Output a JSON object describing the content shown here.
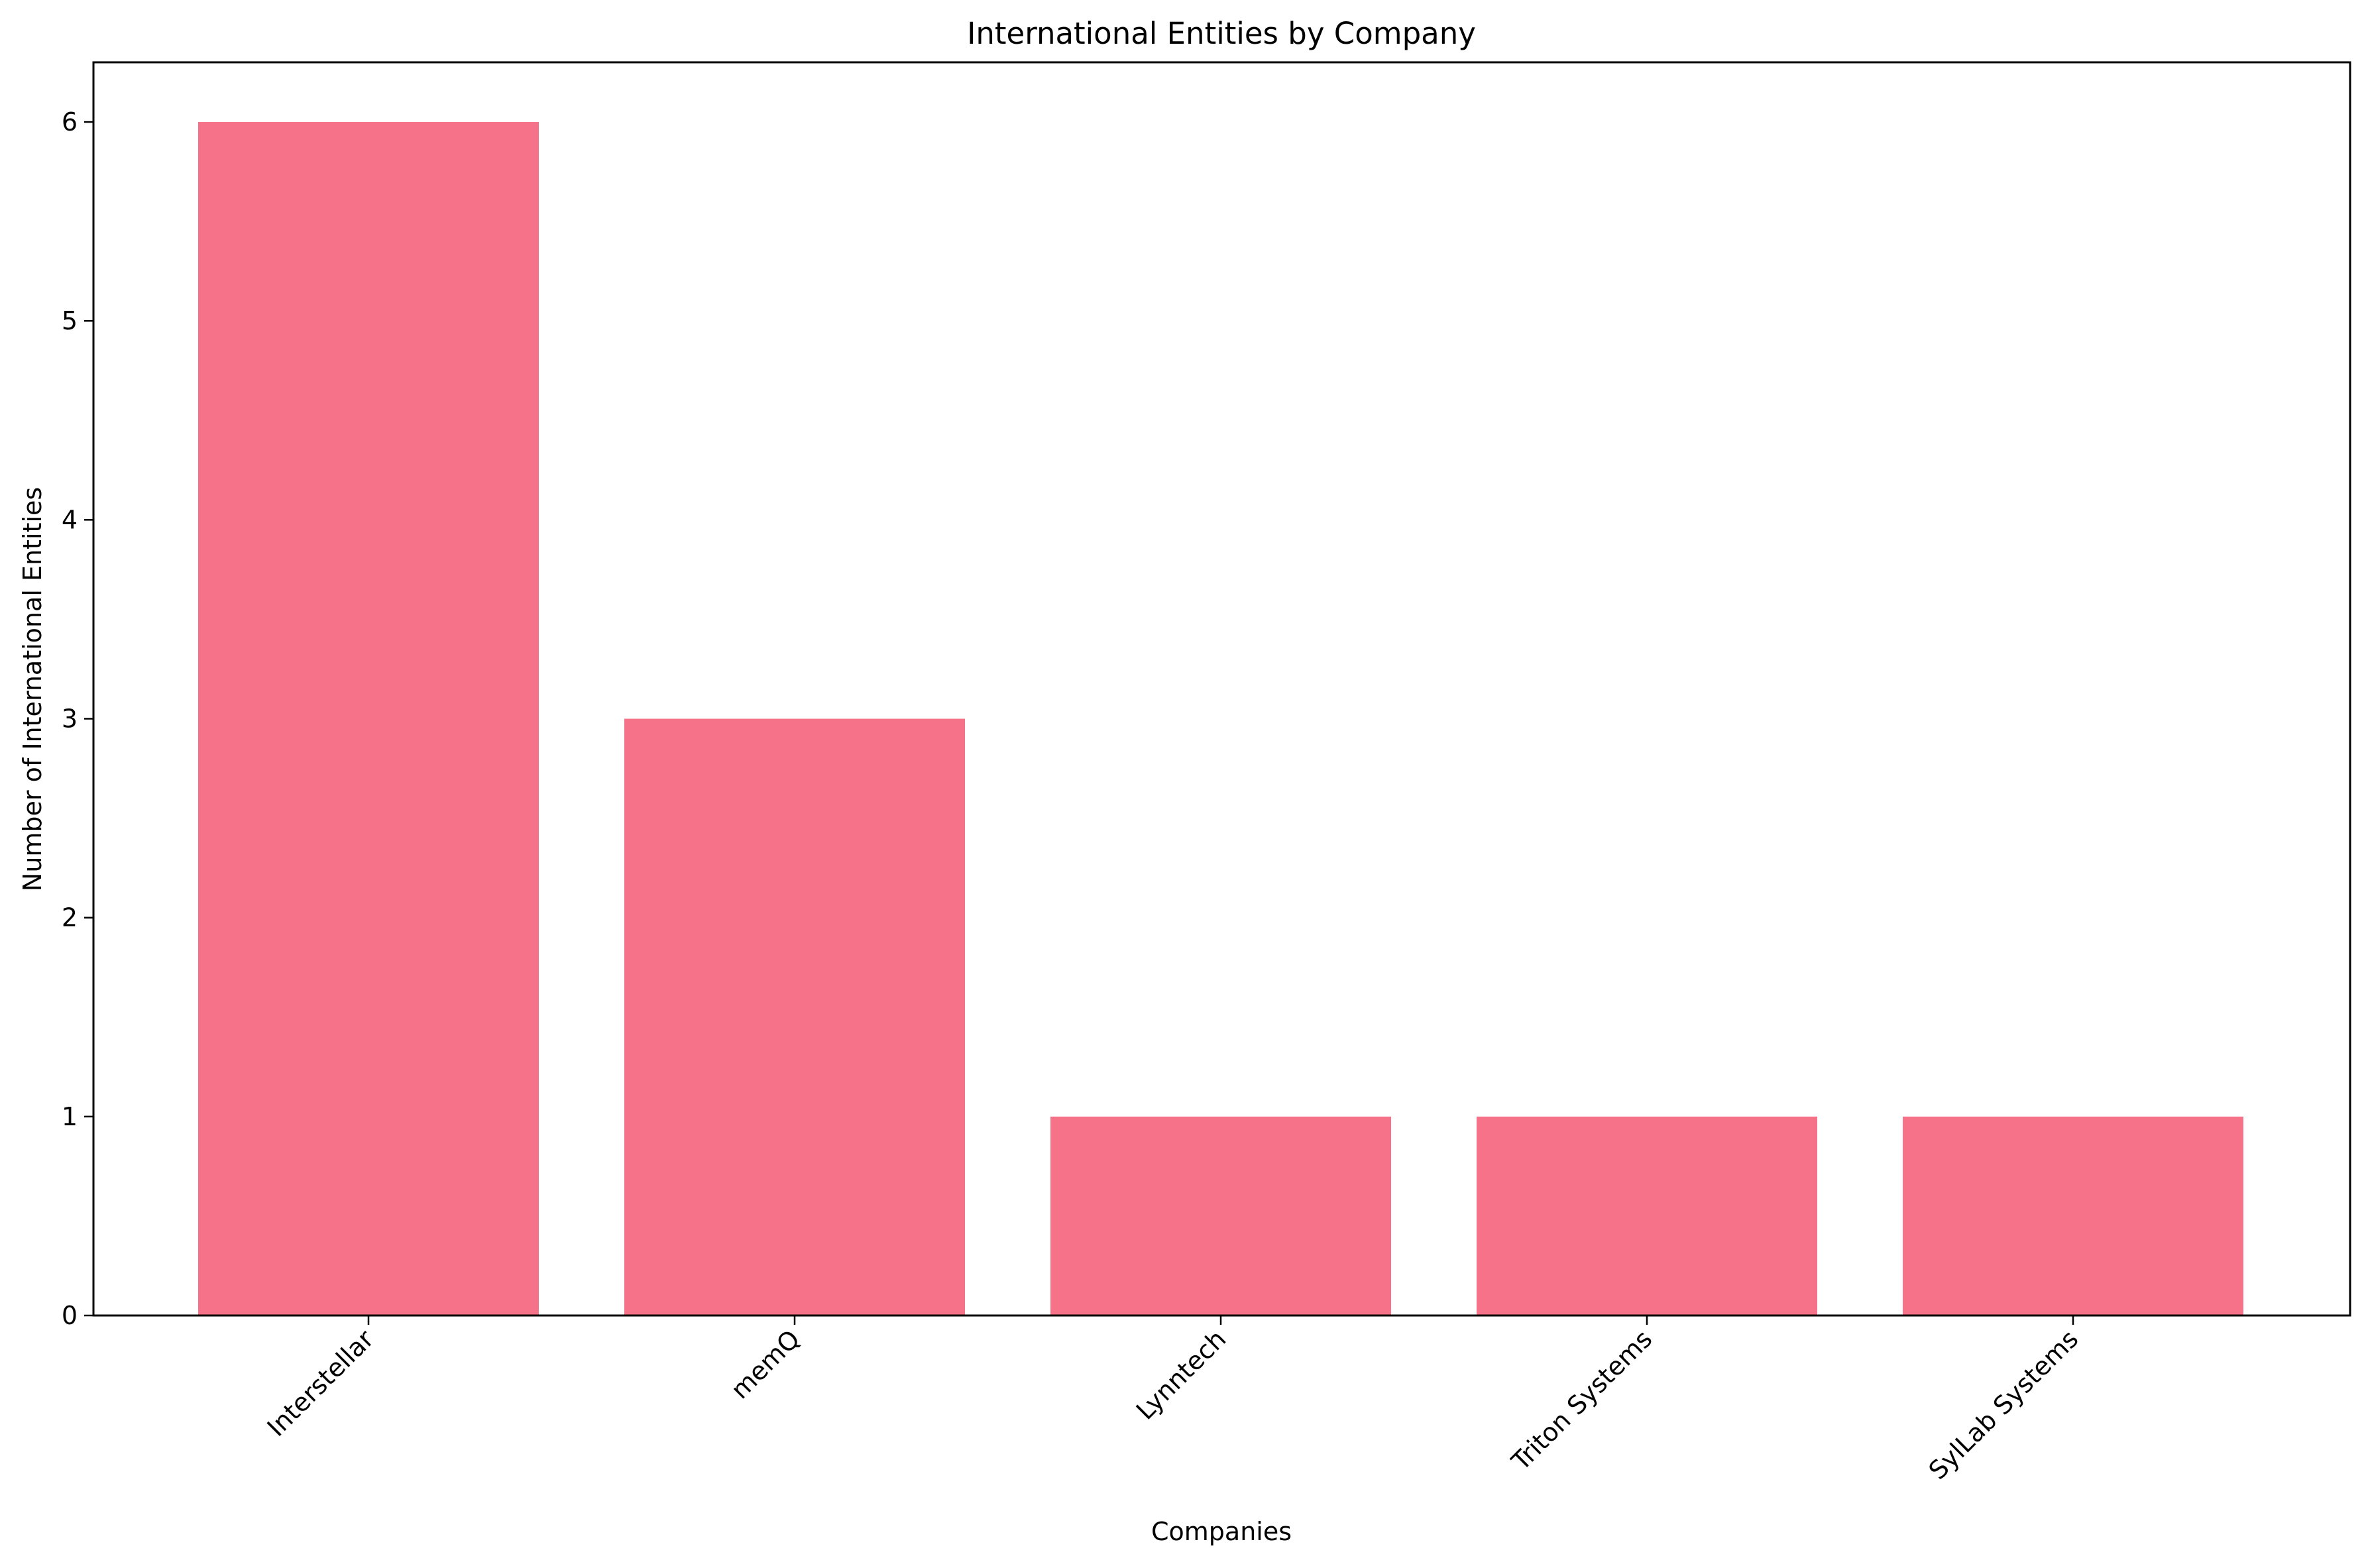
{
  "chart_data": {
    "type": "bar",
    "title": "International Entities by Company",
    "xlabel": "Companies",
    "ylabel": "Number of International Entities",
    "categories": [
      "Interstellar",
      "memQ",
      "Lynntech",
      "Triton Systems",
      "SylLab Systems"
    ],
    "values": [
      6,
      3,
      1,
      1,
      1
    ],
    "ylim": [
      0,
      6.3
    ],
    "yticks": [
      "0",
      "1",
      "2",
      "3",
      "4",
      "5",
      "6"
    ],
    "bar_color": "#f67288",
    "grid": false,
    "legend": "none"
  }
}
